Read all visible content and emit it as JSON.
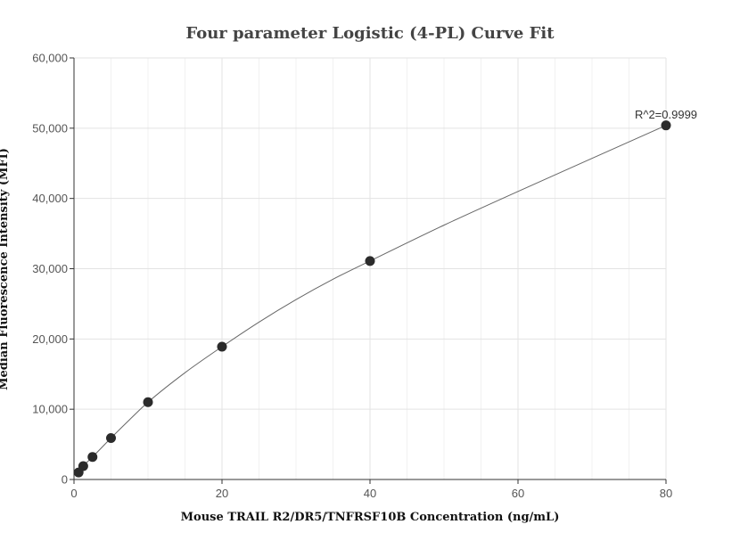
{
  "chart_data": {
    "type": "scatter",
    "title": "Four parameter Logistic (4-PL) Curve Fit",
    "xlabel": "Mouse TRAIL R2/DR5/TNFRSF10B Concentration (ng/mL)",
    "ylabel": "Median Fluorescence Intensity (MFI)",
    "xlim": [
      0,
      80
    ],
    "ylim": [
      0,
      60000
    ],
    "x_ticks": [
      0,
      20,
      40,
      60,
      80
    ],
    "y_ticks": [
      0,
      10000,
      20000,
      30000,
      40000,
      50000,
      60000
    ],
    "x_tick_labels": [
      "0",
      "20",
      "40",
      "60",
      "80"
    ],
    "y_tick_labels": [
      "0",
      "10,000",
      "20,000",
      "30,000",
      "40,000",
      "50,000",
      "60,000"
    ],
    "grid": true,
    "series": [
      {
        "kind": "points",
        "x": [
          0.625,
          1.25,
          2.5,
          5,
          10,
          20,
          40,
          80
        ],
        "y": [
          1000,
          1900,
          3200,
          5900,
          11000,
          18900,
          31100,
          50400
        ]
      },
      {
        "kind": "fit-curve",
        "x": [
          0.625,
          1.25,
          2.5,
          5,
          7.5,
          10,
          15,
          20,
          25,
          30,
          35,
          40,
          50,
          60,
          70,
          80
        ],
        "y": [
          1000,
          1900,
          3200,
          5900,
          8500,
          11000,
          15200,
          18900,
          22400,
          25600,
          28500,
          31100,
          36200,
          41000,
          45700,
          50400
        ]
      }
    ],
    "annotation": "R^2=0.9999",
    "colors": {
      "point": "#2b2b2b",
      "curve": "#666666",
      "grid": "#e3e3e3",
      "title": "#444444"
    }
  }
}
